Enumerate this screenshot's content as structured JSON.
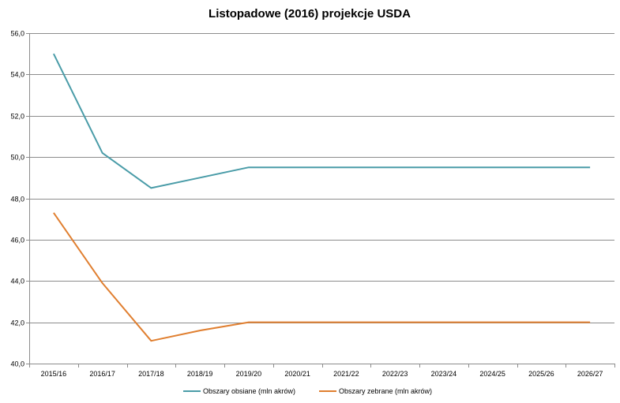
{
  "chart_data": {
    "type": "line",
    "title": "Listopadowe (2016) projekcje USDA",
    "xlabel": "",
    "ylabel": "",
    "categories": [
      "2015/16",
      "2016/17",
      "2017/18",
      "2018/19",
      "2019/20",
      "2020/21",
      "2021/22",
      "2022/23",
      "2023/24",
      "2024/25",
      "2025/26",
      "2026/27"
    ],
    "ylim": [
      40.0,
      56.0
    ],
    "ytick_values": [
      40.0,
      42.0,
      44.0,
      46.0,
      48.0,
      50.0,
      52.0,
      54.0,
      56.0
    ],
    "ytick_labels": [
      "40,0",
      "42,0",
      "44,0",
      "46,0",
      "48,0",
      "50,0",
      "52,0",
      "54,0",
      "56,0"
    ],
    "grid": true,
    "legend_position": "bottom",
    "series": [
      {
        "name": "Obszary obsiane (mln akrów)",
        "color": "#4a9ca8",
        "values": [
          55.0,
          50.2,
          48.5,
          49.0,
          49.5,
          49.5,
          49.5,
          49.5,
          49.5,
          49.5,
          49.5,
          49.5
        ]
      },
      {
        "name": "Obszary zebrane (mln akrów)",
        "color": "#e07f30",
        "values": [
          47.3,
          43.9,
          41.1,
          41.6,
          42.0,
          42.0,
          42.0,
          42.0,
          42.0,
          42.0,
          42.0,
          42.0
        ]
      }
    ]
  }
}
